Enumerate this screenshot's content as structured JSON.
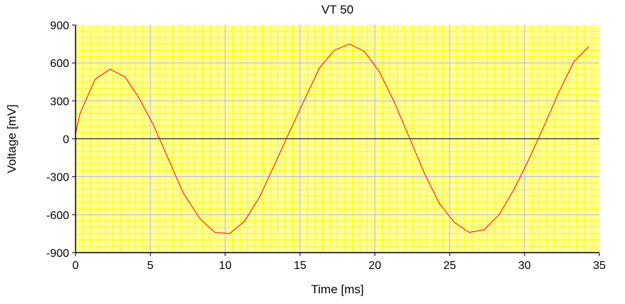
{
  "colors": {
    "plot_background": "#ffff99",
    "minor_grid": "#ffff00",
    "major_grid": "#b4b4dc",
    "series_line": "#ff0000",
    "zero_line": "#000000",
    "axis": "#000000"
  },
  "chart_data": {
    "type": "line",
    "title": "VT 50",
    "xlabel": "Time [ms]",
    "ylabel": "Voltage [mV]",
    "xlim": [
      0,
      35
    ],
    "ylim": [
      -900,
      900
    ],
    "xticks": [
      0,
      5,
      10,
      15,
      20,
      25,
      30,
      35
    ],
    "yticks": [
      -900,
      -600,
      -300,
      0,
      300,
      600,
      900
    ],
    "x_tick_labels": [
      "0",
      "5",
      "10",
      "15",
      "20",
      "25",
      "30",
      "35"
    ],
    "y_tick_labels": [
      "-900",
      "-600",
      "-300",
      "0",
      "300",
      "600",
      "900"
    ],
    "grid": {
      "major": true,
      "minor": true,
      "minor_x_divisions": 10,
      "minor_y_divisions": 6
    },
    "zero_line": true,
    "series": [
      {
        "x": [
          0,
          0.3,
          1.3,
          2.3,
          3.3,
          4.2,
          5.2,
          6.2,
          7.2,
          8.3,
          9.3,
          10.3,
          11.3,
          12.3,
          13.2,
          14.2,
          15.3,
          16.3,
          17.3,
          18.3,
          19.3,
          20.3,
          21.3,
          22.3,
          23.3,
          24.3,
          25.3,
          26.3,
          27.3,
          28.3,
          29.3,
          30.3,
          31.3,
          32.3,
          33.3,
          34.3
        ],
        "y": [
          40,
          200,
          470,
          550,
          490,
          330,
          110,
          -160,
          -430,
          -630,
          -740,
          -750,
          -650,
          -460,
          -230,
          30,
          310,
          560,
          700,
          750,
          690,
          530,
          290,
          10,
          -270,
          -510,
          -660,
          -740,
          -720,
          -600,
          -400,
          -160,
          100,
          370,
          610,
          730
        ]
      }
    ]
  }
}
